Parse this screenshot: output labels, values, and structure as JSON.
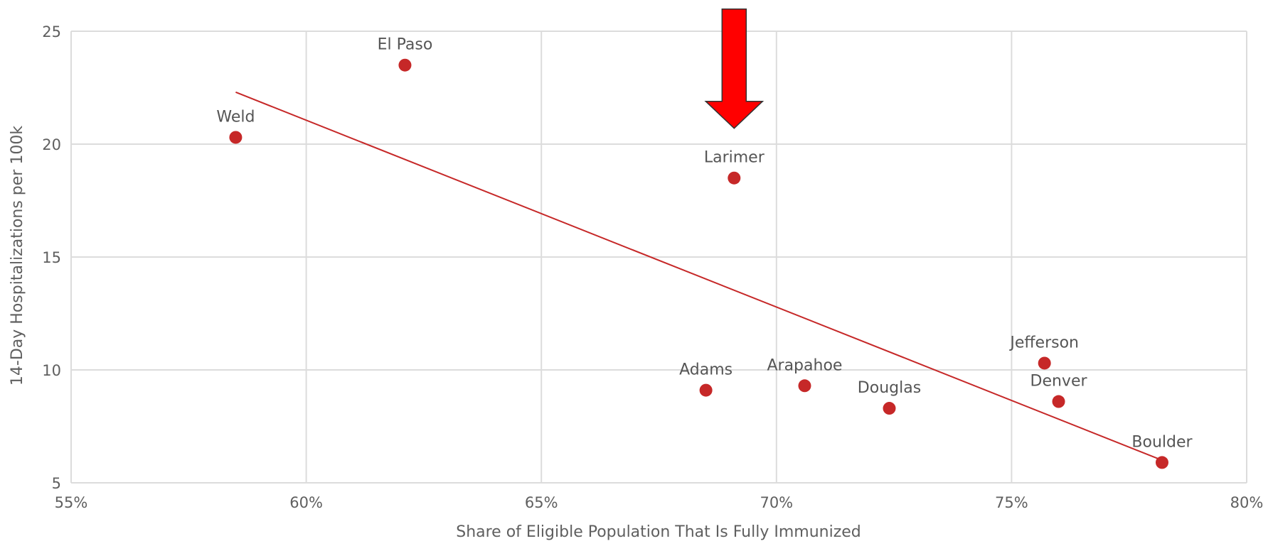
{
  "chart_data": {
    "type": "scatter",
    "title": "",
    "xlabel": "Share of Eligible Population That Is Fully Immunized",
    "ylabel": "14-Day Hospitalizations per 100k",
    "xlim": [
      55,
      80
    ],
    "ylim": [
      5,
      25
    ],
    "x_ticks": [
      55,
      60,
      65,
      70,
      75,
      80
    ],
    "x_tick_labels": [
      "55%",
      "60%",
      "65%",
      "70%",
      "75%",
      "80%"
    ],
    "y_ticks": [
      5,
      10,
      15,
      20,
      25
    ],
    "y_tick_labels": [
      "5",
      "10",
      "15",
      "20",
      "25"
    ],
    "grid": true,
    "legend": "none",
    "point_color": "#c62828",
    "trendline": {
      "x": [
        58.5,
        78.2
      ],
      "y": [
        22.3,
        6.0
      ],
      "color": "#c62828"
    },
    "points": [
      {
        "label": "Weld",
        "x": 58.5,
        "y": 20.3
      },
      {
        "label": "El Paso",
        "x": 62.1,
        "y": 23.5
      },
      {
        "label": "Larimer",
        "x": 69.1,
        "y": 18.5
      },
      {
        "label": "Adams",
        "x": 68.5,
        "y": 9.1
      },
      {
        "label": "Arapahoe",
        "x": 70.6,
        "y": 9.3
      },
      {
        "label": "Douglas",
        "x": 72.4,
        "y": 8.3
      },
      {
        "label": "Jefferson",
        "x": 75.7,
        "y": 10.3
      },
      {
        "label": "Denver",
        "x": 76.0,
        "y": 8.6
      },
      {
        "label": "Boulder",
        "x": 78.2,
        "y": 5.9
      }
    ],
    "annotation_arrow": {
      "target": "Larimer",
      "color": "#ff0000"
    }
  }
}
